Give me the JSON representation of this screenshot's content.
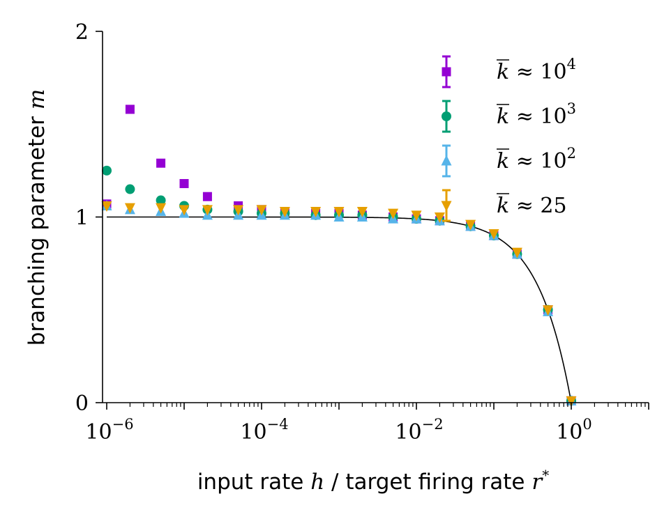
{
  "chart_data": {
    "type": "scatter",
    "xscale": "log",
    "xlim": [
      1e-06,
      10
    ],
    "ylim": [
      0,
      2
    ],
    "xlabel": {
      "prefix": "input rate ",
      "var1": "h",
      "mid": " / target firing rate ",
      "var2": "r",
      "sup": "*"
    },
    "ylabel": {
      "prefix": "branching parameter ",
      "var": "m"
    },
    "x_ticks": [
      {
        "base": "10",
        "exp": "−6",
        "value": 1e-06
      },
      {
        "base": "10",
        "exp": "−4",
        "value": 0.0001
      },
      {
        "base": "10",
        "exp": "−2",
        "value": 0.01
      },
      {
        "base": "10",
        "exp": "0",
        "value": 1
      }
    ],
    "y_ticks": [
      {
        "label": "0",
        "value": 0
      },
      {
        "label": "1",
        "value": 1
      },
      {
        "label": "2",
        "value": 2
      }
    ],
    "legend_position": "top-right",
    "curve": {
      "description": "m = 1 - h/r*",
      "color": "#000000"
    },
    "series": [
      {
        "name": {
          "k": "k",
          "approx": "≈",
          "base": "10",
          "exp": "4"
        },
        "marker": "square",
        "color": "#9400D3",
        "points": [
          [
            1e-06,
            1.07
          ],
          [
            2e-06,
            1.58
          ],
          [
            5e-06,
            1.29
          ],
          [
            1e-05,
            1.18
          ],
          [
            2e-05,
            1.11
          ],
          [
            5e-05,
            1.06
          ],
          [
            0.0001,
            1.04
          ],
          [
            0.0002,
            1.03
          ],
          [
            0.0005,
            1.02
          ],
          [
            0.001,
            1.02
          ],
          [
            0.002,
            1.01
          ],
          [
            0.005,
            1.0
          ],
          [
            0.01,
            0.99
          ],
          [
            0.02,
            0.98
          ],
          [
            0.05,
            0.95
          ],
          [
            0.1,
            0.9
          ],
          [
            0.2,
            0.8
          ],
          [
            0.5,
            0.5
          ],
          [
            1,
            0.01
          ]
        ]
      },
      {
        "name": {
          "k": "k",
          "approx": "≈",
          "base": "10",
          "exp": "3"
        },
        "marker": "circle",
        "color": "#009E73",
        "points": [
          [
            1e-06,
            1.25
          ],
          [
            2e-06,
            1.15
          ],
          [
            5e-06,
            1.09
          ],
          [
            1e-05,
            1.06
          ],
          [
            2e-05,
            1.04
          ],
          [
            5e-05,
            1.03
          ],
          [
            0.0001,
            1.02
          ],
          [
            0.0002,
            1.02
          ],
          [
            0.0005,
            1.01
          ],
          [
            0.001,
            1.01
          ],
          [
            0.002,
            1.01
          ],
          [
            0.005,
            1.0
          ],
          [
            0.01,
            0.99
          ],
          [
            0.02,
            0.98
          ],
          [
            0.05,
            0.95
          ],
          [
            0.1,
            0.9
          ],
          [
            0.2,
            0.8
          ],
          [
            0.5,
            0.5
          ],
          [
            1,
            0.01
          ]
        ]
      },
      {
        "name": {
          "k": "k",
          "approx": "≈",
          "base": "10",
          "exp": "2"
        },
        "marker": "triangle-up",
        "color": "#56B4E9",
        "points": [
          [
            1e-06,
            1.06
          ],
          [
            2e-06,
            1.04
          ],
          [
            5e-06,
            1.03
          ],
          [
            1e-05,
            1.02
          ],
          [
            2e-05,
            1.01
          ],
          [
            5e-05,
            1.01
          ],
          [
            0.0001,
            1.01
          ],
          [
            0.0002,
            1.01
          ],
          [
            0.0005,
            1.01
          ],
          [
            0.001,
            1.0
          ],
          [
            0.002,
            1.0
          ],
          [
            0.005,
            0.99
          ],
          [
            0.01,
            0.99
          ],
          [
            0.02,
            0.98
          ],
          [
            0.05,
            0.95
          ],
          [
            0.1,
            0.9
          ],
          [
            0.2,
            0.8
          ],
          [
            0.5,
            0.49
          ],
          [
            1,
            0.01
          ]
        ]
      },
      {
        "name": {
          "k": "k",
          "approx": "≈",
          "base": "25",
          "exp": ""
        },
        "marker": "triangle-down",
        "color": "#E69F00",
        "points": [
          [
            1e-06,
            1.06
          ],
          [
            2e-06,
            1.05
          ],
          [
            5e-06,
            1.05
          ],
          [
            1e-05,
            1.04
          ],
          [
            2e-05,
            1.04
          ],
          [
            5e-05,
            1.04
          ],
          [
            0.0001,
            1.04
          ],
          [
            0.0002,
            1.03
          ],
          [
            0.0005,
            1.03
          ],
          [
            0.001,
            1.03
          ],
          [
            0.002,
            1.03
          ],
          [
            0.005,
            1.02
          ],
          [
            0.01,
            1.01
          ],
          [
            0.02,
            1.0
          ],
          [
            0.05,
            0.96
          ],
          [
            0.1,
            0.91
          ],
          [
            0.2,
            0.81
          ],
          [
            0.5,
            0.5
          ],
          [
            1,
            0.01
          ]
        ]
      }
    ]
  }
}
